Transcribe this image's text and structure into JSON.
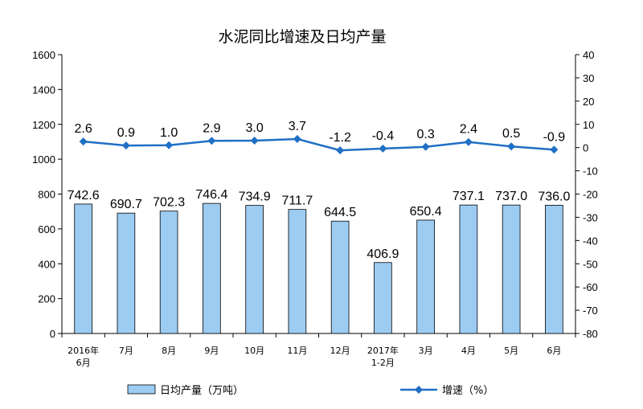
{
  "chart_data": {
    "type": "bar",
    "title": "水泥同比增速及日均产量",
    "categories": [
      [
        "2016年",
        "6月"
      ],
      [
        "7月"
      ],
      [
        "8月"
      ],
      [
        "9月"
      ],
      [
        "10月"
      ],
      [
        "11月"
      ],
      [
        "12月"
      ],
      [
        "2017年",
        "1-2月"
      ],
      [
        "3月"
      ],
      [
        "4月"
      ],
      [
        "5月"
      ],
      [
        "6月"
      ]
    ],
    "series": [
      {
        "name": "日均产量（万吨）",
        "type": "bar",
        "axis": "left",
        "values": [
          742.6,
          690.7,
          702.3,
          746.4,
          734.9,
          711.7,
          644.5,
          406.9,
          650.4,
          737.1,
          737.0,
          736.0
        ],
        "labels": [
          "742.6",
          "690.7",
          "702.3",
          "746.4",
          "734.9",
          "711.7",
          "644.5",
          "406.9",
          "650.4",
          "737.1",
          "737.0",
          "736.0"
        ]
      },
      {
        "name": "增速（%）",
        "type": "line",
        "axis": "right",
        "values": [
          2.6,
          0.9,
          1.0,
          2.9,
          3.0,
          3.7,
          -1.2,
          -0.4,
          0.3,
          2.4,
          0.5,
          -0.9
        ],
        "labels": [
          "2.6",
          "0.9",
          "1.0",
          "2.9",
          "3.0",
          "3.7",
          "-1.2",
          "-0.4",
          "0.3",
          "2.4",
          "0.5",
          "-0.9"
        ]
      }
    ],
    "y_left": {
      "ylim": [
        0,
        1600
      ],
      "ticks": [
        0,
        200,
        400,
        600,
        800,
        1000,
        1200,
        1400,
        1600
      ]
    },
    "y_right": {
      "ylim": [
        -80,
        40
      ],
      "ticks": [
        40,
        30,
        20,
        10,
        0,
        -10,
        -20,
        -30,
        -40,
        -50,
        -60,
        -70,
        -80
      ]
    },
    "grid": false,
    "legend_position": "bottom",
    "colors": {
      "bar_fill": "#9DCCF2",
      "bar_stroke": "#000000",
      "line": "#1f6fc5"
    }
  }
}
